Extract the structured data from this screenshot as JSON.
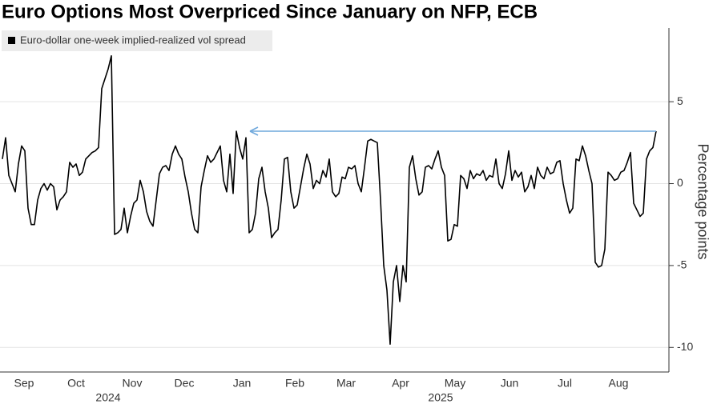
{
  "chart_data": {
    "type": "line",
    "title": "Euro Options Most Overpriced Since January on NFP, ECB",
    "y_axis_label": "Percentage points",
    "legend": "top-left",
    "grid": true,
    "series": [
      {
        "name": "Euro-dollar one-week implied-realized vol spread",
        "color": "#000000",
        "values": [
          1.5,
          2.8,
          0.5,
          0,
          -0.5,
          1.2,
          2.3,
          2.0,
          -1.5,
          -2.5,
          -2.5,
          -1,
          -0.3,
          0,
          -0.4,
          0,
          -0.2,
          -1.6,
          -1.0,
          -0.8,
          -0.5,
          1.3,
          1.0,
          1.2,
          0.5,
          0.7,
          1.5,
          1.7,
          1.9,
          2.0,
          2.2,
          5.8,
          6.4,
          7.0,
          7.8,
          -3.1,
          -3.0,
          -2.8,
          -1.5,
          -3.0,
          -2.0,
          -1.2,
          -1.0,
          0.2,
          -0.5,
          -1.7,
          -2.3,
          -2.6,
          -1.0,
          0.6,
          1.0,
          1.1,
          0.8,
          1.8,
          2.3,
          1.8,
          1.5,
          0.4,
          -0.5,
          -1.8,
          -2.8,
          -3.0,
          -0.2,
          0.8,
          1.7,
          1.3,
          1.5,
          1.9,
          2.3,
          0.2,
          -0.5,
          1.8,
          -0.6,
          3.2,
          2.2,
          1.5,
          2.8,
          -3.0,
          -2.8,
          -1.8,
          0.3,
          1.0,
          -0.5,
          -1.5,
          -3.3,
          -3.0,
          -2.8,
          -1.0,
          1.5,
          1.6,
          -0.5,
          -1.5,
          -1.3,
          -0.2,
          0.9,
          1.8,
          1.2,
          -0.3,
          0.2,
          0.0,
          0.8,
          0.4,
          1.5,
          -0.5,
          -0.8,
          -0.6,
          0.4,
          0.3,
          1.0,
          0.9,
          1.1,
          0.0,
          -0.5,
          1.0,
          2.6,
          2.7,
          2.6,
          2.5,
          -1.0,
          -5.0,
          -6.5,
          -9.8,
          -6.0,
          -5.0,
          -7.2,
          -5.0,
          -6.0,
          1.0,
          1.7,
          0.3,
          -0.7,
          -0.5,
          1.0,
          1.1,
          0.9,
          1.5,
          2.0,
          1.0,
          0.5,
          -3.5,
          -3.4,
          -2.5,
          -2.6,
          0.5,
          0.3,
          -0.3,
          0.8,
          0.3,
          0.6,
          0.5,
          0.8,
          0.2,
          0.5,
          0.4,
          1.5,
          0.0,
          -0.3,
          0.6,
          2.0,
          0.2,
          0.8,
          0.4,
          0.7,
          -0.5,
          -0.2,
          0.5,
          -0.3,
          1.0,
          0.5,
          0.3,
          1.0,
          0.6,
          0.7,
          1.3,
          1.4,
          0.0,
          -1.0,
          -1.8,
          -1.5,
          1.5,
          1.4,
          2.3,
          1.7,
          0.8,
          0.0,
          -4.8,
          -5.1,
          -5.0,
          -4.0,
          0.7,
          0.5,
          0.2,
          0.3,
          0.7,
          0.8,
          1.3,
          1.9,
          -1.2,
          -1.6,
          -2.0,
          -1.8,
          1.5,
          2.0,
          2.2,
          3.2
        ]
      }
    ],
    "xlim": [
      -0.75,
      208
    ],
    "xticks": [
      {
        "value": 6.75,
        "label": "Sep"
      },
      {
        "value": 23,
        "label": "Oct"
      },
      {
        "value": 40.5,
        "label": "Nov"
      },
      {
        "value": 56.75,
        "label": "Dec"
      },
      {
        "value": 74.75,
        "label": "Jan"
      },
      {
        "value": 91.25,
        "label": "Feb"
      },
      {
        "value": 107.25,
        "label": "Mar"
      },
      {
        "value": 124.25,
        "label": "Apr"
      },
      {
        "value": 141.25,
        "label": "May"
      },
      {
        "value": 158.25,
        "label": "Jun"
      },
      {
        "value": 175.5,
        "label": "Jul"
      },
      {
        "value": 192.25,
        "label": "Aug"
      }
    ],
    "year_ticks": [
      {
        "value": 33,
        "label": "2024"
      },
      {
        "value": 136.75,
        "label": "2025"
      }
    ],
    "ylim": [
      -11.5,
      9.5
    ],
    "yticks": [
      5,
      0,
      -5,
      -10
    ],
    "arrow_color": "#6fa8dc"
  }
}
